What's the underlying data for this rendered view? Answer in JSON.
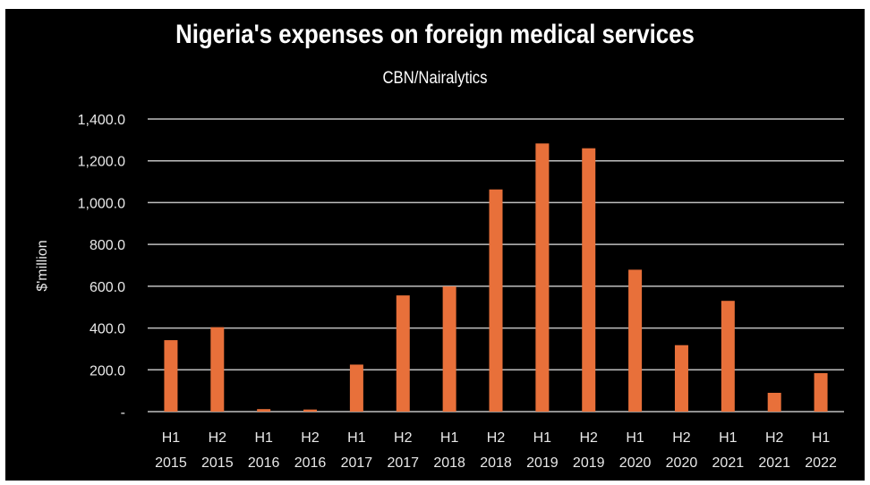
{
  "chart_data": {
    "type": "bar",
    "title": "Nigeria's expenses on foreign medical services",
    "subtitle": "CBN/Nairalytics",
    "xlabel": "",
    "ylabel": "$'million",
    "ylim": [
      0,
      1400
    ],
    "yticks": [
      0,
      200,
      400,
      600,
      800,
      1000,
      1200,
      1400
    ],
    "ytick_labels": [
      "-",
      "200.0",
      "400.0",
      "600.0",
      "800.0",
      "1,000.0",
      "1,200.0",
      "1,400.0"
    ],
    "grid": true,
    "categories": [
      [
        "H1",
        "2015"
      ],
      [
        "H2",
        "2015"
      ],
      [
        "H1",
        "2016"
      ],
      [
        "H2",
        "2016"
      ],
      [
        "H1",
        "2017"
      ],
      [
        "H2",
        "2017"
      ],
      [
        "H1",
        "2018"
      ],
      [
        "H2",
        "2018"
      ],
      [
        "H1",
        "2019"
      ],
      [
        "H2",
        "2019"
      ],
      [
        "H1",
        "2020"
      ],
      [
        "H2",
        "2020"
      ],
      [
        "H1",
        "2021"
      ],
      [
        "H2",
        "2021"
      ],
      [
        "H1",
        "2022"
      ]
    ],
    "values": [
      342,
      404,
      12,
      10,
      225,
      556,
      599,
      1063,
      1283,
      1260,
      679,
      318,
      530,
      90,
      184
    ],
    "colors": {
      "bar": "#E8703A",
      "background": "#000000",
      "grid": "#BFBFBF",
      "text": "#FFFFFF"
    }
  }
}
